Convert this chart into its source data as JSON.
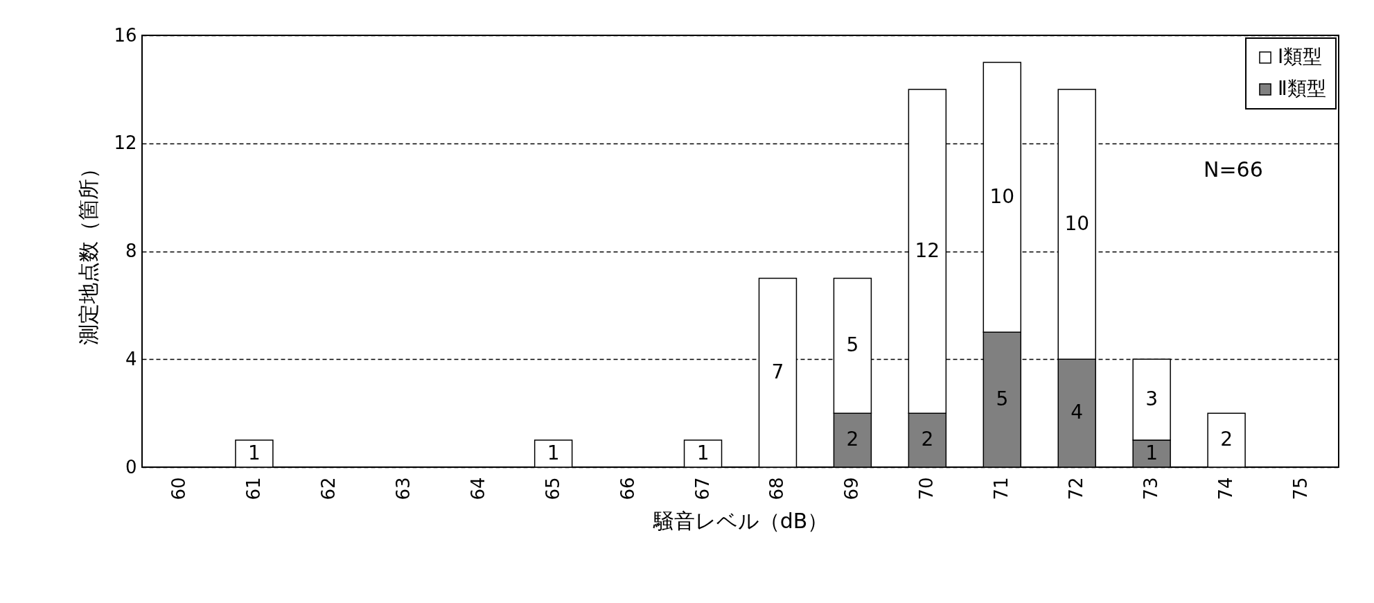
{
  "chart_data": {
    "type": "bar",
    "stacked": true,
    "xlabel": "騒音レベル（dB）",
    "ylabel": "測定地点数（箇所）",
    "categories": [
      "60",
      "61",
      "62",
      "63",
      "64",
      "65",
      "66",
      "67",
      "68",
      "69",
      "70",
      "71",
      "72",
      "73",
      "74",
      "75"
    ],
    "series": [
      {
        "name": "Ⅱ類型",
        "color": "#808080",
        "values": [
          null,
          null,
          null,
          null,
          null,
          null,
          null,
          null,
          null,
          2,
          2,
          5,
          4,
          1,
          null,
          null
        ]
      },
      {
        "name": "Ⅰ類型",
        "color": "#ffffff",
        "values": [
          null,
          1,
          null,
          null,
          null,
          1,
          null,
          1,
          7,
          5,
          12,
          10,
          10,
          3,
          2,
          null
        ]
      }
    ],
    "ylim": [
      0,
      16
    ],
    "yticks": [
      0,
      4,
      8,
      12,
      16
    ],
    "grid": "y",
    "legend": "top right",
    "data_labels": true,
    "annotations": [
      "N=66"
    ]
  }
}
